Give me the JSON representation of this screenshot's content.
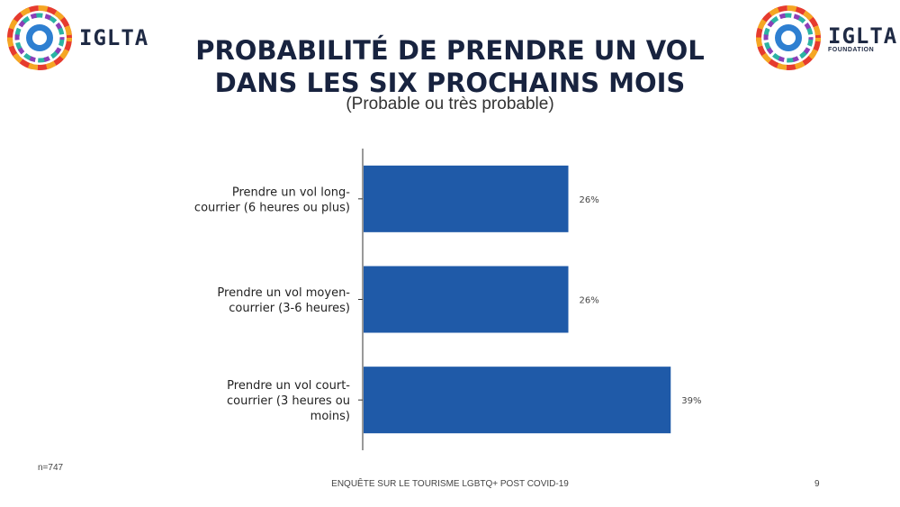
{
  "logos": {
    "left": {
      "name": "IGLTA",
      "sub": ""
    },
    "right": {
      "name": "IGLTA",
      "sub": "FOUNDATION"
    }
  },
  "colors": {
    "bar": "#1f5aa8",
    "title": "#18233f",
    "axis": "#333333"
  },
  "chart_data": {
    "type": "bar",
    "orientation": "horizontal",
    "title": "PROBABILITÉ DE PRENDRE UN VOL\nDANS LES SIX PROCHAINS MOIS",
    "subtitle": "(Probable ou très probable)",
    "categories": [
      "Prendre un vol long-courrier (6 heures ou plus)",
      "Prendre un vol moyen-courrier (3-6 heures)",
      "Prendre un vol court-courrier (3 heures ou moins)"
    ],
    "category_lines": [
      [
        "Prendre un vol long-",
        "courrier (6 heures ou plus)"
      ],
      [
        "Prendre un vol moyen-",
        "courrier (3-6 heures)"
      ],
      [
        "Prendre un vol court-",
        "courrier (3 heures ou",
        "moins)"
      ]
    ],
    "values": [
      26,
      26,
      39
    ],
    "value_labels": [
      "26%",
      "26%",
      "39%"
    ],
    "xlim": [
      0,
      100
    ],
    "grid": false,
    "legend": "none"
  },
  "footer": {
    "sample": "n=747",
    "source": "ENQUÊTE SUR LE TOURISME LGBTQ+ POST COVID-19",
    "page": "9"
  }
}
